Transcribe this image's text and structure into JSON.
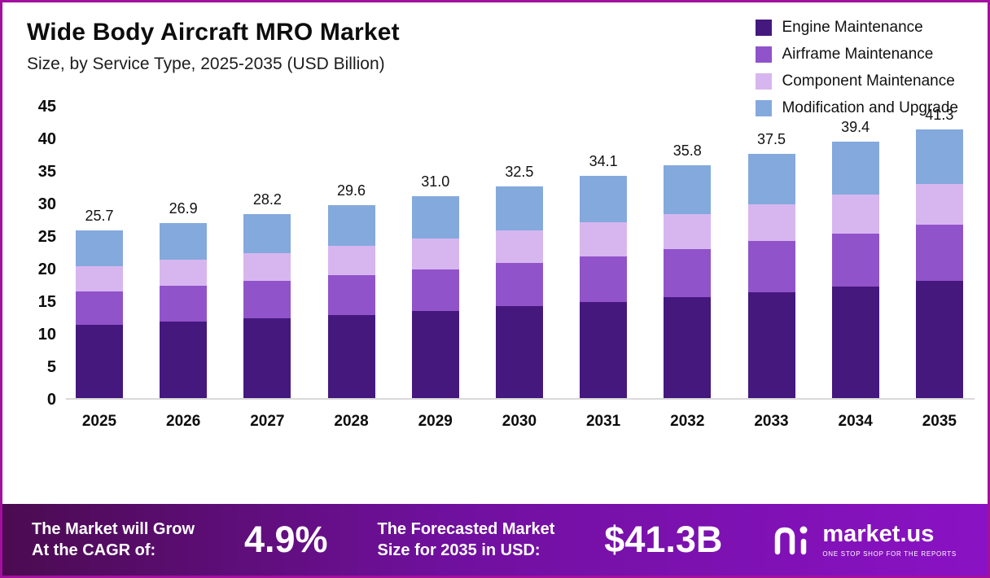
{
  "header": {
    "title": "Wide Body Aircraft MRO Market",
    "subtitle": "Size, by Service Type, 2025-2035 (USD Billion)"
  },
  "chart_data": {
    "type": "bar",
    "stacked": true,
    "title": "Wide Body Aircraft MRO Market Size, by Service Type, 2025-2035 (USD Billion)",
    "unit": "USD Billion",
    "categories": [
      "2025",
      "2026",
      "2027",
      "2028",
      "2029",
      "2030",
      "2031",
      "2032",
      "2033",
      "2034",
      "2035"
    ],
    "series": [
      {
        "name": "Engine Maintenance",
        "color": "#45187e",
        "values": [
          11.2,
          11.7,
          12.2,
          12.8,
          13.4,
          14.1,
          14.8,
          15.5,
          16.3,
          17.1,
          18.0
        ]
      },
      {
        "name": "Airframe Maintenance",
        "color": "#9153c9",
        "values": [
          5.2,
          5.5,
          5.8,
          6.1,
          6.4,
          6.7,
          7.0,
          7.4,
          7.8,
          8.2,
          8.6
        ]
      },
      {
        "name": "Component Maintenance",
        "color": "#d7b6f0",
        "values": [
          3.9,
          4.1,
          4.3,
          4.5,
          4.7,
          4.9,
          5.2,
          5.4,
          5.7,
          6.0,
          6.3
        ]
      },
      {
        "name": "Modification and Upgrade",
        "color": "#84a9dc",
        "values": [
          5.4,
          5.6,
          5.9,
          6.2,
          6.5,
          6.8,
          7.1,
          7.5,
          7.7,
          8.1,
          8.4
        ]
      }
    ],
    "totals": [
      "25.7",
      "26.9",
      "28.2",
      "29.6",
      "31.0",
      "32.5",
      "34.1",
      "35.8",
      "37.5",
      "39.4",
      "41.3"
    ],
    "ylim": [
      0,
      45
    ],
    "y_ticks": [
      45,
      40,
      35,
      30,
      25,
      20,
      15,
      10,
      5,
      0
    ],
    "xlabel": "",
    "ylabel": "",
    "grid": false,
    "legend_position": "top-right"
  },
  "footer": {
    "cagr_label_line1": "The Market will Grow",
    "cagr_label_line2": "At the CAGR of:",
    "cagr_value": "4.9%",
    "forecast_label_line1": "The Forecasted Market",
    "forecast_label_line2": "Size for 2035 in USD:",
    "forecast_value": "$41.3B",
    "brand": "market.us",
    "brand_tagline": "ONE STOP SHOP FOR THE REPORTS"
  }
}
